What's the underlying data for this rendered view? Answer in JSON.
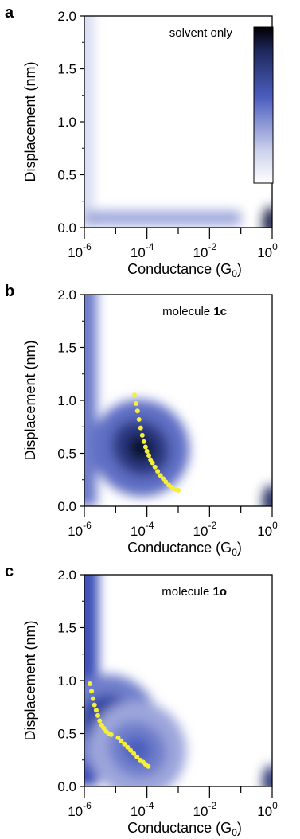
{
  "colors": {
    "map_low": "#ffffff",
    "map_mid": "#3c4fb8",
    "map_high": "#000000",
    "trace": "#f5ef3a",
    "axis": "#000000"
  },
  "chart_data": [
    {
      "type": "heatmap",
      "panel_label": "a",
      "annotation": "solvent only",
      "annotation_bold": "",
      "xlabel": "Conductance (G",
      "xlabel_sub": "0",
      "xlabel_close": ")",
      "ylabel": "Displacement (nm)",
      "x_scale": "log",
      "xlim": [
        1e-06,
        1
      ],
      "ylim": [
        0,
        2.0
      ],
      "x_ticks": [
        {
          "base": "10",
          "exp": "-6"
        },
        {
          "base": "10",
          "exp": "-4"
        },
        {
          "base": "10",
          "exp": "-2"
        },
        {
          "base": "10",
          "exp": "0"
        }
      ],
      "y_ticks": [
        "0.0",
        "0.5",
        "1.0",
        "1.5",
        "2.0"
      ],
      "colorbar": "inset, top-right, dark at top to white at bottom",
      "density_regions": [
        {
          "shape": "vertical_band",
          "x_log_range": [
            -6,
            -5.7
          ],
          "y_range": [
            0,
            2.0
          ],
          "intensity": 0.12
        },
        {
          "shape": "horizontal_band",
          "x_log_range": [
            -6,
            -1
          ],
          "y_range": [
            0.02,
            0.16
          ],
          "intensity": 0.3
        },
        {
          "shape": "spot",
          "x_log": -0.05,
          "y": 0.05,
          "intensity": 0.85
        }
      ],
      "trace": []
    },
    {
      "type": "heatmap",
      "panel_label": "b",
      "annotation": "molecule ",
      "annotation_bold": "1c",
      "xlabel": "Conductance (G",
      "xlabel_sub": "0",
      "xlabel_close": ")",
      "ylabel": "Displacement (nm)",
      "x_scale": "log",
      "xlim": [
        1e-06,
        1
      ],
      "ylim": [
        0,
        2.0
      ],
      "x_ticks": [
        {
          "base": "10",
          "exp": "-6"
        },
        {
          "base": "10",
          "exp": "-4"
        },
        {
          "base": "10",
          "exp": "-2"
        },
        {
          "base": "10",
          "exp": "0"
        }
      ],
      "y_ticks": [
        "0.0",
        "0.5",
        "1.0",
        "1.5",
        "2.0"
      ],
      "density_regions": [
        {
          "shape": "vertical_band",
          "x_log_range": [
            -6,
            -5.6
          ],
          "y_range": [
            0,
            2.0
          ],
          "intensity": 0.45
        },
        {
          "shape": "cloud",
          "x_log": -4.2,
          "y": 0.55,
          "intensity": 0.9
        },
        {
          "shape": "spot",
          "x_log": -0.05,
          "y": 0.05,
          "intensity": 0.8
        }
      ],
      "trace": [
        {
          "x": 4e-05,
          "y": 1.05
        },
        {
          "x": 4.5e-05,
          "y": 0.97
        },
        {
          "x": 5e-05,
          "y": 0.9
        },
        {
          "x": 5.6e-05,
          "y": 0.82
        },
        {
          "x": 6.3e-05,
          "y": 0.74
        },
        {
          "x": 7.1e-05,
          "y": 0.67
        },
        {
          "x": 8e-05,
          "y": 0.61
        },
        {
          "x": 9e-05,
          "y": 0.56
        },
        {
          "x": 0.0001,
          "y": 0.52
        },
        {
          "x": 0.000115,
          "y": 0.48
        },
        {
          "x": 0.00013,
          "y": 0.44
        },
        {
          "x": 0.00015,
          "y": 0.41
        },
        {
          "x": 0.00018,
          "y": 0.37
        },
        {
          "x": 0.00022,
          "y": 0.33
        },
        {
          "x": 0.00027,
          "y": 0.29
        },
        {
          "x": 0.00033,
          "y": 0.26
        },
        {
          "x": 0.0004,
          "y": 0.23
        },
        {
          "x": 0.0005,
          "y": 0.2
        },
        {
          "x": 0.00063,
          "y": 0.18
        },
        {
          "x": 0.0008,
          "y": 0.16
        },
        {
          "x": 0.001,
          "y": 0.15
        }
      ]
    },
    {
      "type": "heatmap",
      "panel_label": "c",
      "annotation": "molecule ",
      "annotation_bold": "1o",
      "xlabel": "Conductance (G",
      "xlabel_sub": "0",
      "xlabel_close": ")",
      "ylabel": "Displacement (nm)",
      "x_scale": "log",
      "xlim": [
        1e-06,
        1
      ],
      "ylim": [
        0,
        2.0
      ],
      "x_ticks": [
        {
          "base": "10",
          "exp": "-6"
        },
        {
          "base": "10",
          "exp": "-4"
        },
        {
          "base": "10",
          "exp": "-2"
        },
        {
          "base": "10",
          "exp": "0"
        }
      ],
      "y_ticks": [
        "0.0",
        "0.5",
        "1.0",
        "1.5",
        "2.0"
      ],
      "density_regions": [
        {
          "shape": "vertical_band",
          "x_log_range": [
            -6,
            -5.55
          ],
          "y_range": [
            0,
            2.0
          ],
          "intensity": 0.6
        },
        {
          "shape": "cloud",
          "x_log": -5.2,
          "y": 0.6,
          "intensity": 0.8
        },
        {
          "shape": "cloud",
          "x_log": -4.3,
          "y": 0.35,
          "intensity": 0.55
        },
        {
          "shape": "spot",
          "x_log": -0.05,
          "y": 0.05,
          "intensity": 0.75
        }
      ],
      "trace": [
        {
          "x": 1.5e-06,
          "y": 0.97
        },
        {
          "x": 1.7e-06,
          "y": 0.9
        },
        {
          "x": 1.9e-06,
          "y": 0.83
        },
        {
          "x": 2.1e-06,
          "y": 0.77
        },
        {
          "x": 2.4e-06,
          "y": 0.72
        },
        {
          "x": 2.7e-06,
          "y": 0.67
        },
        {
          "x": 3.1e-06,
          "y": 0.62
        },
        {
          "x": 3.6e-06,
          "y": 0.58
        },
        {
          "x": 4.2e-06,
          "y": 0.55
        },
        {
          "x": 5e-06,
          "y": 0.52
        },
        {
          "x": 6e-06,
          "y": 0.5
        },
        {
          "x": 7.2e-06,
          "y": 0.49
        },
        {
          "x": 1.2e-05,
          "y": 0.46
        },
        {
          "x": 1.5e-05,
          "y": 0.43
        },
        {
          "x": 1.9e-05,
          "y": 0.4
        },
        {
          "x": 2.4e-05,
          "y": 0.37
        },
        {
          "x": 3e-05,
          "y": 0.34
        },
        {
          "x": 3.8e-05,
          "y": 0.31
        },
        {
          "x": 4.8e-05,
          "y": 0.28
        },
        {
          "x": 6e-05,
          "y": 0.25
        },
        {
          "x": 7.5e-05,
          "y": 0.23
        },
        {
          "x": 9e-05,
          "y": 0.21
        },
        {
          "x": 0.00011,
          "y": 0.19
        }
      ]
    }
  ]
}
